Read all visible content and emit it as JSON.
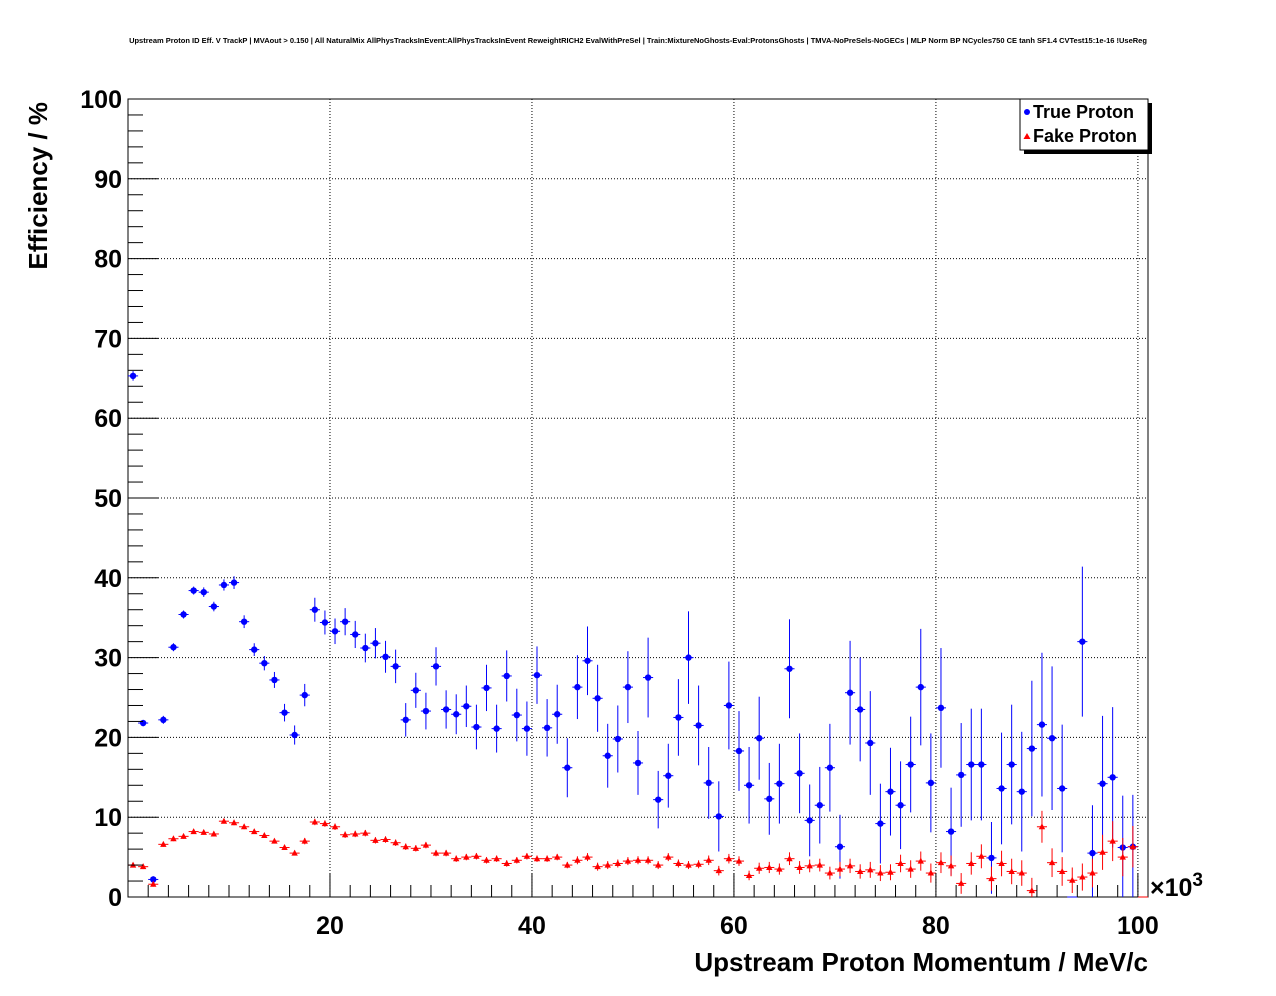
{
  "chart_data": {
    "type": "scatter",
    "title": "Upstream Proton ID Eff. V TrackP | MVAout > 0.150 | All NaturalMix AllPhysTracksInEvent:AllPhysTracksInEvent ReweightRICH2 EvalWithPreSel | Train:MixtureNoGhosts-Eval:ProtonsGhosts | TMVA-NoPreSels-NoGECs | MLP Norm BP NCycles750 CE tanh SF1.4 CVTest15:1e-16 !UseReg",
    "xlabel": "Upstream Proton Momentum / MeV/c",
    "ylabel": "Efficiency / %",
    "x_multiplier_label": "×10",
    "x_multiplier_exp": "3",
    "xlim": [
      0,
      101
    ],
    "ylim": [
      0,
      100
    ],
    "x_ticks": [
      "20",
      "40",
      "60",
      "80",
      "100"
    ],
    "y_ticks": [
      "0",
      "10",
      "20",
      "30",
      "40",
      "50",
      "60",
      "70",
      "80",
      "90",
      "100"
    ],
    "grid": true,
    "legend_position": "top-right",
    "series": [
      {
        "name": "True Proton",
        "color": "#0000ff",
        "marker": "circle",
        "x": [
          0.5,
          1.5,
          2.5,
          3.5,
          4.5,
          5.5,
          6.5,
          7.5,
          8.5,
          9.5,
          10.5,
          11.5,
          12.5,
          13.5,
          14.5,
          15.5,
          16.5,
          17.5,
          18.5,
          19.5,
          20.5,
          21.5,
          22.5,
          23.5,
          24.5,
          25.5,
          26.5,
          27.5,
          28.5,
          29.5,
          30.5,
          31.5,
          32.5,
          33.5,
          34.5,
          35.5,
          36.5,
          37.5,
          38.5,
          39.5,
          40.5,
          41.5,
          42.5,
          43.5,
          44.5,
          45.5,
          46.5,
          47.5,
          48.5,
          49.5,
          50.5,
          51.5,
          52.5,
          53.5,
          54.5,
          55.5,
          56.5,
          57.5,
          58.5,
          59.5,
          60.5,
          61.5,
          62.5,
          63.5,
          64.5,
          65.5,
          66.5,
          67.5,
          68.5,
          69.5,
          70.5,
          71.5,
          72.5,
          73.5,
          74.5,
          75.5,
          76.5,
          77.5,
          78.5,
          79.5,
          80.5,
          81.5,
          82.5,
          83.5,
          84.5,
          85.5,
          86.5,
          87.5,
          88.5,
          89.5,
          90.5,
          91.5,
          92.5,
          93.5,
          94.5,
          95.5,
          96.5,
          97.5,
          98.5,
          99.5,
          100.5
        ],
        "y": [
          65.3,
          21.8,
          2.2,
          22.2,
          31.3,
          35.4,
          38.4,
          38.2,
          36.4,
          39.1,
          39.4,
          34.5,
          31.0,
          29.3,
          27.2,
          23.1,
          20.3,
          25.3,
          36.0,
          34.4,
          33.3,
          34.5,
          32.9,
          31.2,
          31.8,
          30.1,
          28.9,
          22.2,
          25.9,
          23.3,
          28.9,
          23.5,
          22.9,
          23.9,
          21.3,
          26.2,
          21.1,
          27.7,
          22.8,
          21.1,
          27.8,
          21.2,
          22.9,
          16.2,
          26.3,
          29.6,
          24.9,
          17.7,
          19.8,
          26.3,
          16.8,
          27.5,
          12.2,
          15.2,
          22.5,
          30.0,
          21.5,
          14.3,
          10.1,
          24.0,
          18.3,
          14.0,
          19.9,
          12.3,
          14.2,
          28.6,
          15.5,
          9.6,
          11.5,
          16.2,
          6.3,
          25.6,
          23.5,
          19.3,
          9.2,
          13.2,
          11.5,
          16.6,
          26.3,
          14.3,
          23.7,
          8.2,
          15.3,
          16.6,
          16.6,
          4.9,
          13.6,
          16.6,
          13.2,
          18.6,
          21.6,
          19.9,
          13.6,
          0,
          32.0,
          5.5,
          14.2,
          15.0,
          6.2,
          6.3,
          0
        ],
        "y_err": [
          0.6,
          0.4,
          0.4,
          0.5,
          0.5,
          0.5,
          0.5,
          0.6,
          0.6,
          0.7,
          0.8,
          0.8,
          0.8,
          0.9,
          1.0,
          1.1,
          1.2,
          1.4,
          1.5,
          1.5,
          1.6,
          1.7,
          1.7,
          1.8,
          1.9,
          2.0,
          2.1,
          2.1,
          2.2,
          2.3,
          2.4,
          2.4,
          2.5,
          2.6,
          2.8,
          2.9,
          3.0,
          3.2,
          3.3,
          3.4,
          3.6,
          3.6,
          3.7,
          3.7,
          4.0,
          4.3,
          4.2,
          4.0,
          4.2,
          4.5,
          4.0,
          5.0,
          3.6,
          4.0,
          4.8,
          5.8,
          5.0,
          4.5,
          4.4,
          5.5,
          5.0,
          4.8,
          5.2,
          4.5,
          5.0,
          6.2,
          5.0,
          4.5,
          4.8,
          5.5,
          4.0,
          6.5,
          6.5,
          6.5,
          5.0,
          5.5,
          5.5,
          6.0,
          7.3,
          6.2,
          7.5,
          5.5,
          6.5,
          7.0,
          7.0,
          4.5,
          7.0,
          7.5,
          7.5,
          8.5,
          9.0,
          9.0,
          8.0,
          0,
          9.4,
          6.0,
          8.5,
          8.8,
          6.5,
          6.5,
          0
        ]
      },
      {
        "name": "Fake Proton",
        "color": "#ff0000",
        "marker": "triangle",
        "x": [
          0.5,
          1.5,
          2.5,
          3.5,
          4.5,
          5.5,
          6.5,
          7.5,
          8.5,
          9.5,
          10.5,
          11.5,
          12.5,
          13.5,
          14.5,
          15.5,
          16.5,
          17.5,
          18.5,
          19.5,
          20.5,
          21.5,
          22.5,
          23.5,
          24.5,
          25.5,
          26.5,
          27.5,
          28.5,
          29.5,
          30.5,
          31.5,
          32.5,
          33.5,
          34.5,
          35.5,
          36.5,
          37.5,
          38.5,
          39.5,
          40.5,
          41.5,
          42.5,
          43.5,
          44.5,
          45.5,
          46.5,
          47.5,
          48.5,
          49.5,
          50.5,
          51.5,
          52.5,
          53.5,
          54.5,
          55.5,
          56.5,
          57.5,
          58.5,
          59.5,
          60.5,
          61.5,
          62.5,
          63.5,
          64.5,
          65.5,
          66.5,
          67.5,
          68.5,
          69.5,
          70.5,
          71.5,
          72.5,
          73.5,
          74.5,
          75.5,
          76.5,
          77.5,
          78.5,
          79.5,
          80.5,
          81.5,
          82.5,
          83.5,
          84.5,
          85.5,
          86.5,
          87.5,
          88.5,
          89.5,
          90.5,
          91.5,
          92.5,
          93.5,
          94.5,
          95.5,
          96.5,
          97.5,
          98.5,
          99.5,
          100.5
        ],
        "y": [
          4.0,
          3.8,
          1.6,
          6.6,
          7.3,
          7.6,
          8.2,
          8.1,
          7.9,
          9.5,
          9.3,
          8.8,
          8.2,
          7.7,
          7.0,
          6.2,
          5.5,
          7.0,
          9.4,
          9.2,
          8.8,
          7.8,
          7.9,
          8.0,
          7.1,
          7.2,
          6.8,
          6.3,
          6.1,
          6.5,
          5.5,
          5.5,
          4.8,
          5.0,
          5.1,
          4.6,
          4.8,
          4.2,
          4.6,
          5.1,
          4.8,
          4.8,
          5.0,
          4.0,
          4.6,
          5.0,
          3.8,
          4.0,
          4.2,
          4.5,
          4.6,
          4.6,
          4.0,
          5.0,
          4.2,
          4.0,
          4.1,
          4.6,
          3.3,
          4.8,
          4.5,
          2.7,
          3.6,
          3.7,
          3.5,
          4.8,
          3.7,
          3.9,
          4.0,
          3.0,
          3.5,
          3.9,
          3.2,
          3.4,
          3.0,
          3.1,
          4.2,
          3.5,
          4.5,
          3.0,
          4.3,
          3.9,
          1.7,
          4.2,
          5.1,
          2.3,
          4.2,
          3.2,
          3.0,
          0.8,
          8.8,
          4.3,
          3.2,
          2.1,
          2.5,
          3.0,
          5.6,
          7.0,
          5.0,
          6.3,
          0
        ],
        "y_err": [
          0.3,
          0.3,
          0.3,
          0.3,
          0.3,
          0.3,
          0.3,
          0.3,
          0.3,
          0.3,
          0.3,
          0.3,
          0.3,
          0.3,
          0.3,
          0.3,
          0.3,
          0.4,
          0.4,
          0.4,
          0.4,
          0.4,
          0.4,
          0.4,
          0.4,
          0.4,
          0.4,
          0.4,
          0.4,
          0.4,
          0.4,
          0.4,
          0.4,
          0.4,
          0.4,
          0.4,
          0.4,
          0.4,
          0.4,
          0.4,
          0.4,
          0.4,
          0.4,
          0.4,
          0.5,
          0.5,
          0.5,
          0.5,
          0.5,
          0.5,
          0.5,
          0.5,
          0.5,
          0.5,
          0.5,
          0.5,
          0.5,
          0.6,
          0.6,
          0.6,
          0.6,
          0.6,
          0.7,
          0.7,
          0.7,
          0.8,
          0.8,
          0.8,
          0.8,
          0.8,
          0.9,
          0.9,
          0.9,
          1.0,
          1.0,
          1.0,
          1.1,
          1.1,
          1.2,
          1.2,
          1.3,
          1.3,
          1.3,
          1.4,
          1.5,
          1.5,
          1.6,
          1.6,
          1.6,
          1.6,
          2.0,
          1.8,
          1.8,
          1.6,
          1.7,
          1.8,
          2.2,
          2.5,
          2.4,
          2.6,
          0
        ]
      }
    ]
  }
}
